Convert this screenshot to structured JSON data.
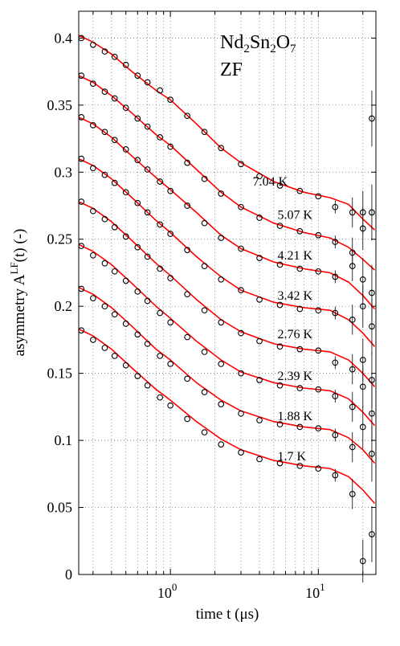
{
  "chart_data": {
    "type": "scatter",
    "title_parts": [
      "Nd",
      "2",
      "Sn",
      "2",
      "O",
      "7"
    ],
    "subtitle": "ZF",
    "xlabel": "time t (μs)",
    "ylabel": "asymmetry A",
    "ylabel_sup": "LF",
    "ylabel_tail": "(t) (-)",
    "x_scale": "log",
    "xlim": [
      0.24,
      24.5
    ],
    "ylim": [
      0,
      0.42
    ],
    "x_ticks": [
      {
        "value": 1,
        "base": "10",
        "exp": "0"
      },
      {
        "value": 10,
        "base": "10",
        "exp": "1"
      }
    ],
    "y_ticks": [
      {
        "value": 0,
        "label": "0"
      },
      {
        "value": 0.05,
        "label": "0.05"
      },
      {
        "value": 0.1,
        "label": "0.1"
      },
      {
        "value": 0.15,
        "label": "0.15"
      },
      {
        "value": 0.2,
        "label": "0.2"
      },
      {
        "value": 0.25,
        "label": "0.25"
      },
      {
        "value": 0.3,
        "label": "0.3"
      },
      {
        "value": 0.35,
        "label": "0.35"
      },
      {
        "value": 0.4,
        "label": "0.4"
      }
    ],
    "grid": true,
    "marker_color": "#000000",
    "fit_color": "#ff0000",
    "series": [
      {
        "name": "7.04 K",
        "label_at": {
          "x": 3.6,
          "y": 0.29
        },
        "points": [
          [
            0.25,
            0.4
          ],
          [
            0.3,
            0.395
          ],
          [
            0.36,
            0.39
          ],
          [
            0.42,
            0.386
          ],
          [
            0.5,
            0.38
          ],
          [
            0.6,
            0.372
          ],
          [
            0.7,
            0.367
          ],
          [
            0.85,
            0.361
          ],
          [
            1.0,
            0.354
          ],
          [
            1.3,
            0.342
          ],
          [
            1.7,
            0.33
          ],
          [
            2.2,
            0.318
          ],
          [
            3.0,
            0.306
          ],
          [
            4.0,
            0.297
          ],
          [
            5.5,
            0.29
          ],
          [
            7.5,
            0.286
          ],
          [
            10,
            0.282
          ],
          [
            13,
            0.274
          ],
          [
            17,
            0.27
          ],
          [
            20,
            0.27
          ],
          [
            23,
            0.34
          ]
        ],
        "fit": [
          [
            0.24,
            0.402
          ],
          [
            0.3,
            0.397
          ],
          [
            0.4,
            0.388
          ],
          [
            0.55,
            0.375
          ],
          [
            0.8,
            0.361
          ],
          [
            1.0,
            0.354
          ],
          [
            1.5,
            0.336
          ],
          [
            2.2,
            0.318
          ],
          [
            3.0,
            0.307
          ],
          [
            5.0,
            0.293
          ],
          [
            8.0,
            0.285
          ],
          [
            12,
            0.281
          ],
          [
            16,
            0.276
          ],
          [
            20,
            0.265
          ],
          [
            24,
            0.257
          ]
        ]
      },
      {
        "name": "5.07 K",
        "label_at": {
          "x": 5.3,
          "y": 0.265
        },
        "points": [
          [
            0.25,
            0.372
          ],
          [
            0.3,
            0.366
          ],
          [
            0.36,
            0.36
          ],
          [
            0.42,
            0.355
          ],
          [
            0.5,
            0.348
          ],
          [
            0.6,
            0.34
          ],
          [
            0.7,
            0.334
          ],
          [
            0.85,
            0.326
          ],
          [
            1.0,
            0.319
          ],
          [
            1.3,
            0.307
          ],
          [
            1.7,
            0.295
          ],
          [
            2.2,
            0.284
          ],
          [
            3.0,
            0.274
          ],
          [
            4.0,
            0.266
          ],
          [
            5.5,
            0.26
          ],
          [
            7.5,
            0.256
          ],
          [
            10,
            0.253
          ],
          [
            13,
            0.248
          ],
          [
            17,
            0.24
          ],
          [
            20,
            0.258
          ],
          [
            23,
            0.27
          ]
        ],
        "fit": [
          [
            0.24,
            0.372
          ],
          [
            0.3,
            0.367
          ],
          [
            0.4,
            0.357
          ],
          [
            0.55,
            0.344
          ],
          [
            0.8,
            0.328
          ],
          [
            1.0,
            0.32
          ],
          [
            1.5,
            0.302
          ],
          [
            2.2,
            0.285
          ],
          [
            3.0,
            0.274
          ],
          [
            5.0,
            0.262
          ],
          [
            8.0,
            0.255
          ],
          [
            12,
            0.251
          ],
          [
            16,
            0.244
          ],
          [
            20,
            0.235
          ],
          [
            24,
            0.227
          ]
        ]
      },
      {
        "name": "4.21 K",
        "label_at": {
          "x": 5.3,
          "y": 0.235
        },
        "points": [
          [
            0.25,
            0.341
          ],
          [
            0.3,
            0.335
          ],
          [
            0.36,
            0.33
          ],
          [
            0.42,
            0.324
          ],
          [
            0.5,
            0.317
          ],
          [
            0.6,
            0.309
          ],
          [
            0.7,
            0.302
          ],
          [
            0.85,
            0.293
          ],
          [
            1.0,
            0.286
          ],
          [
            1.3,
            0.275
          ],
          [
            1.7,
            0.262
          ],
          [
            2.2,
            0.251
          ],
          [
            3.0,
            0.243
          ],
          [
            4.0,
            0.236
          ],
          [
            5.5,
            0.231
          ],
          [
            7.5,
            0.228
          ],
          [
            10,
            0.226
          ],
          [
            13,
            0.222
          ],
          [
            17,
            0.23
          ],
          [
            20,
            0.22
          ],
          [
            23,
            0.21
          ]
        ],
        "fit": [
          [
            0.24,
            0.341
          ],
          [
            0.3,
            0.336
          ],
          [
            0.4,
            0.326
          ],
          [
            0.55,
            0.312
          ],
          [
            0.8,
            0.296
          ],
          [
            1.0,
            0.287
          ],
          [
            1.5,
            0.27
          ],
          [
            2.2,
            0.253
          ],
          [
            3.0,
            0.243
          ],
          [
            5.0,
            0.233
          ],
          [
            8.0,
            0.228
          ],
          [
            12,
            0.225
          ],
          [
            16,
            0.218
          ],
          [
            20,
            0.208
          ],
          [
            24,
            0.198
          ]
        ]
      },
      {
        "name": "3.42 K",
        "label_at": {
          "x": 5.3,
          "y": 0.205
        },
        "points": [
          [
            0.25,
            0.31
          ],
          [
            0.3,
            0.303
          ],
          [
            0.36,
            0.298
          ],
          [
            0.42,
            0.292
          ],
          [
            0.5,
            0.285
          ],
          [
            0.6,
            0.277
          ],
          [
            0.7,
            0.27
          ],
          [
            0.85,
            0.261
          ],
          [
            1.0,
            0.254
          ],
          [
            1.3,
            0.242
          ],
          [
            1.7,
            0.23
          ],
          [
            2.2,
            0.22
          ],
          [
            3.0,
            0.212
          ],
          [
            4.0,
            0.205
          ],
          [
            5.5,
            0.201
          ],
          [
            7.5,
            0.198
          ],
          [
            10,
            0.197
          ],
          [
            13,
            0.195
          ],
          [
            17,
            0.19
          ],
          [
            20,
            0.2
          ],
          [
            23,
            0.185
          ]
        ],
        "fit": [
          [
            0.24,
            0.31
          ],
          [
            0.3,
            0.305
          ],
          [
            0.4,
            0.295
          ],
          [
            0.55,
            0.281
          ],
          [
            0.8,
            0.264
          ],
          [
            1.0,
            0.255
          ],
          [
            1.5,
            0.237
          ],
          [
            2.2,
            0.222
          ],
          [
            3.0,
            0.212
          ],
          [
            5.0,
            0.203
          ],
          [
            8.0,
            0.199
          ],
          [
            12,
            0.197
          ],
          [
            16,
            0.19
          ],
          [
            20,
            0.18
          ],
          [
            24,
            0.17
          ]
        ]
      },
      {
        "name": "2.76 K",
        "label_at": {
          "x": 5.3,
          "y": 0.176
        },
        "points": [
          [
            0.25,
            0.278
          ],
          [
            0.3,
            0.271
          ],
          [
            0.36,
            0.265
          ],
          [
            0.42,
            0.259
          ],
          [
            0.5,
            0.252
          ],
          [
            0.6,
            0.244
          ],
          [
            0.7,
            0.237
          ],
          [
            0.85,
            0.228
          ],
          [
            1.0,
            0.221
          ],
          [
            1.3,
            0.209
          ],
          [
            1.7,
            0.197
          ],
          [
            2.2,
            0.188
          ],
          [
            3.0,
            0.18
          ],
          [
            4.0,
            0.174
          ],
          [
            5.5,
            0.17
          ],
          [
            7.5,
            0.168
          ],
          [
            10,
            0.167
          ],
          [
            13,
            0.158
          ],
          [
            17,
            0.153
          ],
          [
            20,
            0.16
          ],
          [
            23,
            0.145
          ]
        ],
        "fit": [
          [
            0.24,
            0.278
          ],
          [
            0.3,
            0.273
          ],
          [
            0.4,
            0.263
          ],
          [
            0.55,
            0.249
          ],
          [
            0.8,
            0.232
          ],
          [
            1.0,
            0.223
          ],
          [
            1.5,
            0.205
          ],
          [
            2.2,
            0.19
          ],
          [
            3.0,
            0.181
          ],
          [
            5.0,
            0.172
          ],
          [
            8.0,
            0.168
          ],
          [
            12,
            0.166
          ],
          [
            16,
            0.16
          ],
          [
            20,
            0.15
          ],
          [
            24,
            0.14
          ]
        ]
      },
      {
        "name": "2.39 K",
        "label_at": {
          "x": 5.3,
          "y": 0.145
        },
        "points": [
          [
            0.25,
            0.245
          ],
          [
            0.3,
            0.238
          ],
          [
            0.36,
            0.232
          ],
          [
            0.42,
            0.226
          ],
          [
            0.5,
            0.219
          ],
          [
            0.6,
            0.211
          ],
          [
            0.7,
            0.204
          ],
          [
            0.85,
            0.195
          ],
          [
            1.0,
            0.188
          ],
          [
            1.3,
            0.177
          ],
          [
            1.7,
            0.166
          ],
          [
            2.2,
            0.157
          ],
          [
            3.0,
            0.15
          ],
          [
            4.0,
            0.145
          ],
          [
            5.5,
            0.141
          ],
          [
            7.5,
            0.139
          ],
          [
            10,
            0.138
          ],
          [
            13,
            0.133
          ],
          [
            17,
            0.125
          ],
          [
            20,
            0.14
          ],
          [
            23,
            0.12
          ]
        ],
        "fit": [
          [
            0.24,
            0.246
          ],
          [
            0.3,
            0.241
          ],
          [
            0.4,
            0.231
          ],
          [
            0.55,
            0.217
          ],
          [
            0.8,
            0.2
          ],
          [
            1.0,
            0.191
          ],
          [
            1.5,
            0.174
          ],
          [
            2.2,
            0.16
          ],
          [
            3.0,
            0.151
          ],
          [
            5.0,
            0.143
          ],
          [
            8.0,
            0.139
          ],
          [
            12,
            0.137
          ],
          [
            16,
            0.131
          ],
          [
            20,
            0.121
          ],
          [
            24,
            0.111
          ]
        ]
      },
      {
        "name": "1.88 K",
        "label_at": {
          "x": 5.3,
          "y": 0.115
        },
        "points": [
          [
            0.25,
            0.213
          ],
          [
            0.3,
            0.206
          ],
          [
            0.36,
            0.2
          ],
          [
            0.42,
            0.194
          ],
          [
            0.5,
            0.187
          ],
          [
            0.6,
            0.179
          ],
          [
            0.7,
            0.172
          ],
          [
            0.85,
            0.163
          ],
          [
            1.0,
            0.157
          ],
          [
            1.3,
            0.146
          ],
          [
            1.7,
            0.136
          ],
          [
            2.2,
            0.127
          ],
          [
            3.0,
            0.12
          ],
          [
            4.0,
            0.115
          ],
          [
            5.5,
            0.112
          ],
          [
            7.5,
            0.11
          ],
          [
            10,
            0.109
          ],
          [
            13,
            0.104
          ],
          [
            17,
            0.095
          ],
          [
            20,
            0.11
          ],
          [
            23,
            0.09
          ]
        ],
        "fit": [
          [
            0.24,
            0.214
          ],
          [
            0.3,
            0.209
          ],
          [
            0.4,
            0.199
          ],
          [
            0.55,
            0.185
          ],
          [
            0.8,
            0.168
          ],
          [
            1.0,
            0.16
          ],
          [
            1.5,
            0.143
          ],
          [
            2.2,
            0.13
          ],
          [
            3.0,
            0.122
          ],
          [
            5.0,
            0.114
          ],
          [
            8.0,
            0.11
          ],
          [
            12,
            0.108
          ],
          [
            16,
            0.102
          ],
          [
            20,
            0.093
          ],
          [
            24,
            0.083
          ]
        ]
      },
      {
        "name": "1.7 K",
        "label_at": {
          "x": 5.3,
          "y": 0.085
        },
        "points": [
          [
            0.25,
            0.182
          ],
          [
            0.3,
            0.175
          ],
          [
            0.36,
            0.169
          ],
          [
            0.42,
            0.163
          ],
          [
            0.5,
            0.156
          ],
          [
            0.6,
            0.148
          ],
          [
            0.7,
            0.141
          ],
          [
            0.85,
            0.132
          ],
          [
            1.0,
            0.126
          ],
          [
            1.3,
            0.116
          ],
          [
            1.7,
            0.106
          ],
          [
            2.2,
            0.097
          ],
          [
            3.0,
            0.091
          ],
          [
            4.0,
            0.086
          ],
          [
            5.5,
            0.083
          ],
          [
            7.5,
            0.081
          ],
          [
            10,
            0.079
          ],
          [
            13,
            0.074
          ],
          [
            17,
            0.06
          ],
          [
            20,
            0.01
          ],
          [
            23,
            0.03
          ]
        ],
        "fit": [
          [
            0.24,
            0.183
          ],
          [
            0.3,
            0.178
          ],
          [
            0.4,
            0.168
          ],
          [
            0.55,
            0.154
          ],
          [
            0.8,
            0.138
          ],
          [
            1.0,
            0.13
          ],
          [
            1.5,
            0.114
          ],
          [
            2.2,
            0.101
          ],
          [
            3.0,
            0.093
          ],
          [
            5.0,
            0.085
          ],
          [
            8.0,
            0.081
          ],
          [
            12,
            0.079
          ],
          [
            16,
            0.073
          ],
          [
            20,
            0.063
          ],
          [
            24,
            0.053
          ]
        ]
      }
    ]
  }
}
